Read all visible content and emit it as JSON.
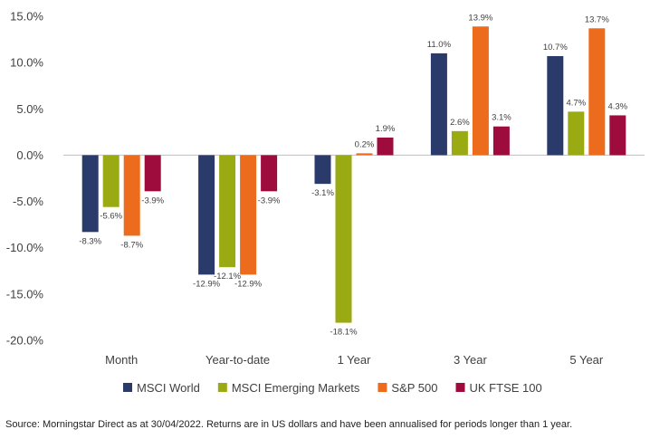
{
  "chart_data": {
    "type": "bar",
    "categories": [
      "Month",
      "Year-to-date",
      "1 Year",
      "3 Year",
      "5 Year"
    ],
    "series": [
      {
        "name": "MSCI World",
        "color": "#2a3a6b",
        "values": [
          -8.3,
          -12.9,
          -3.1,
          11.0,
          10.7
        ]
      },
      {
        "name": "MSCI Emerging Markets",
        "color": "#9aaa12",
        "values": [
          -5.6,
          -12.1,
          -18.1,
          2.6,
          4.7
        ]
      },
      {
        "name": "S&P 500",
        "color": "#ec6b1c",
        "values": [
          -8.7,
          -12.9,
          0.2,
          13.9,
          13.7
        ]
      },
      {
        "name": "UK FTSE 100",
        "color": "#9e0c3e",
        "values": [
          -3.9,
          -3.9,
          1.9,
          3.1,
          4.3
        ]
      }
    ],
    "ylim": [
      -20,
      15
    ],
    "yticks": [
      15,
      10,
      5,
      0,
      -5,
      -10,
      -15,
      -20
    ],
    "ytick_labels": [
      "15.0%",
      "10.0%",
      "5.0%",
      "0.0%",
      "-5.0%",
      "-10.0%",
      "-15.0%",
      "-20.0%"
    ],
    "value_suffix": "%",
    "grid": false,
    "legend_position": "bottom",
    "title": "",
    "xlabel": "",
    "ylabel": ""
  },
  "source_note": "Source: Morningstar Direct as at 30/04/2022. Returns are in US dollars and have been annualised for periods longer than 1 year."
}
